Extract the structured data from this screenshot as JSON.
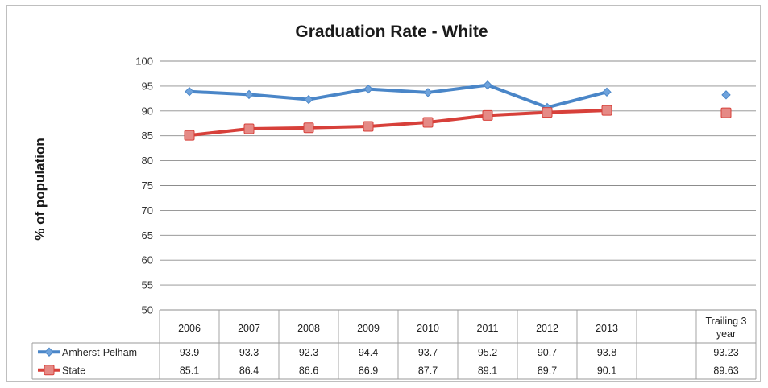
{
  "chart_data": {
    "type": "line",
    "title": "Graduation Rate - White",
    "xlabel": "",
    "ylabel": "% of population",
    "ylim": [
      50,
      100
    ],
    "yticks": [
      50,
      55,
      60,
      65,
      70,
      75,
      80,
      85,
      90,
      95,
      100
    ],
    "grid": true,
    "legend_placement": "data-table",
    "categories": [
      "2006",
      "2007",
      "2008",
      "2009",
      "2010",
      "2011",
      "2012",
      "2013",
      "",
      "Trailing 3 year"
    ],
    "series": [
      {
        "name": "Amherst-Pelham",
        "color": "#4a86c8",
        "marker": "diamond",
        "values": [
          93.9,
          93.3,
          92.3,
          94.4,
          93.7,
          95.2,
          90.7,
          93.8,
          null,
          93.23
        ],
        "labels": [
          "93.9",
          "93.3",
          "92.3",
          "94.4",
          "93.7",
          "95.2",
          "90.7",
          "93.8",
          "",
          "93.23"
        ]
      },
      {
        "name": "State",
        "color": "#d7403a",
        "marker": "square",
        "values": [
          85.1,
          86.4,
          86.6,
          86.9,
          87.7,
          89.1,
          89.7,
          90.1,
          null,
          89.63
        ],
        "labels": [
          "85.1",
          "86.4",
          "86.6",
          "86.9",
          "87.7",
          "89.1",
          "89.7",
          "90.1",
          "",
          "89.63"
        ]
      }
    ]
  }
}
